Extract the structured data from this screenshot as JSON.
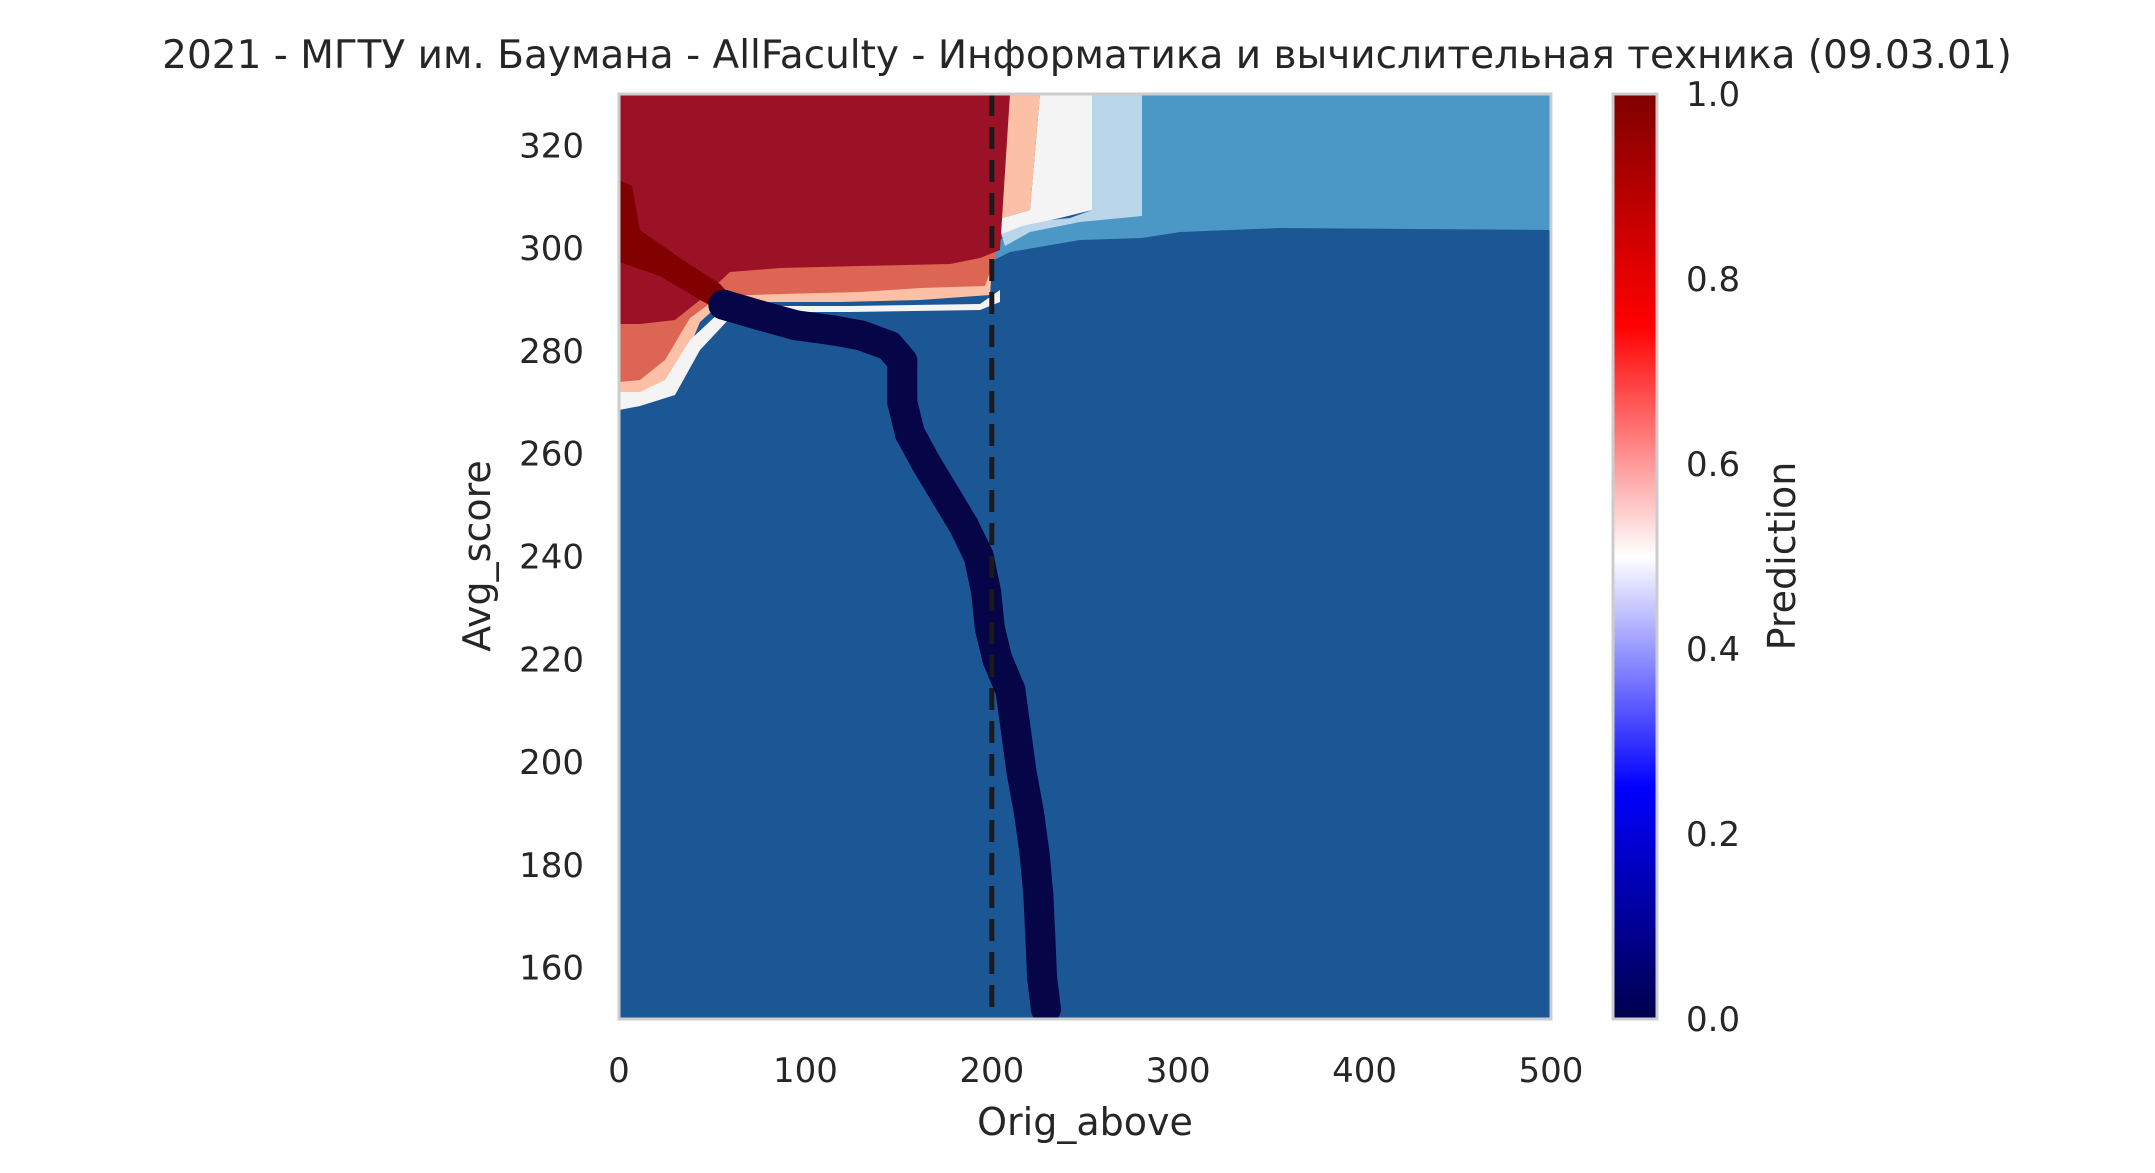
{
  "chart_data": {
    "type": "heatmap",
    "title": "2021 - МГТУ им. Баумана - AllFaculty - Информатика и вычислительная техника (09.03.01)",
    "xlabel": "Orig_above",
    "ylabel": "Avg_score",
    "xlim": [
      0,
      500
    ],
    "ylim": [
      150,
      330
    ],
    "x_ticks": [
      "0",
      "100",
      "200",
      "300",
      "400",
      "500"
    ],
    "y_ticks": [
      "160",
      "180",
      "200",
      "220",
      "240",
      "260",
      "280",
      "300",
      "320"
    ],
    "colorbar": {
      "label": "Prediction",
      "range": [
        0,
        1
      ],
      "ticks": [
        "0.0",
        "0.2",
        "0.4",
        "0.6",
        "0.8",
        "1.0"
      ],
      "colormap": "seismic"
    },
    "grid": false,
    "reference_line": {
      "x": 200,
      "style": "dashed",
      "color": "#1a1a1a"
    },
    "contour_regions": [
      {
        "level": 0.95,
        "color": "#9b1226",
        "desc": "high prediction, x<~210, y>~290"
      },
      {
        "level": 0.85,
        "color": "#dc6553",
        "desc": "band near y~285-295"
      },
      {
        "level": 0.7,
        "color": "#fbc0a5"
      },
      {
        "level": 0.5,
        "color": "#f4f4f4"
      },
      {
        "level": 0.3,
        "color": "#b9d6ea"
      },
      {
        "level": 0.15,
        "color": "#4b98c6",
        "desc": "x>~280, y>~303"
      },
      {
        "level": 0.05,
        "color": "#1c5795",
        "desc": "background low prediction"
      }
    ],
    "trajectory": {
      "color": "#050548",
      "points": [
        {
          "x": 56,
          "y": 289
        },
        {
          "x": 75,
          "y": 287
        },
        {
          "x": 95,
          "y": 285
        },
        {
          "x": 115,
          "y": 284
        },
        {
          "x": 130,
          "y": 283
        },
        {
          "x": 145,
          "y": 281
        },
        {
          "x": 152,
          "y": 278
        },
        {
          "x": 152,
          "y": 270
        },
        {
          "x": 156,
          "y": 264
        },
        {
          "x": 165,
          "y": 258
        },
        {
          "x": 175,
          "y": 252
        },
        {
          "x": 185,
          "y": 246
        },
        {
          "x": 193,
          "y": 240
        },
        {
          "x": 197,
          "y": 233
        },
        {
          "x": 199,
          "y": 226
        },
        {
          "x": 203,
          "y": 220
        },
        {
          "x": 210,
          "y": 214
        },
        {
          "x": 213,
          "y": 206
        },
        {
          "x": 216,
          "y": 198
        },
        {
          "x": 220,
          "y": 190
        },
        {
          "x": 223,
          "y": 182
        },
        {
          "x": 225,
          "y": 174
        },
        {
          "x": 226,
          "y": 166
        },
        {
          "x": 227,
          "y": 158
        },
        {
          "x": 229,
          "y": 152
        }
      ]
    }
  }
}
